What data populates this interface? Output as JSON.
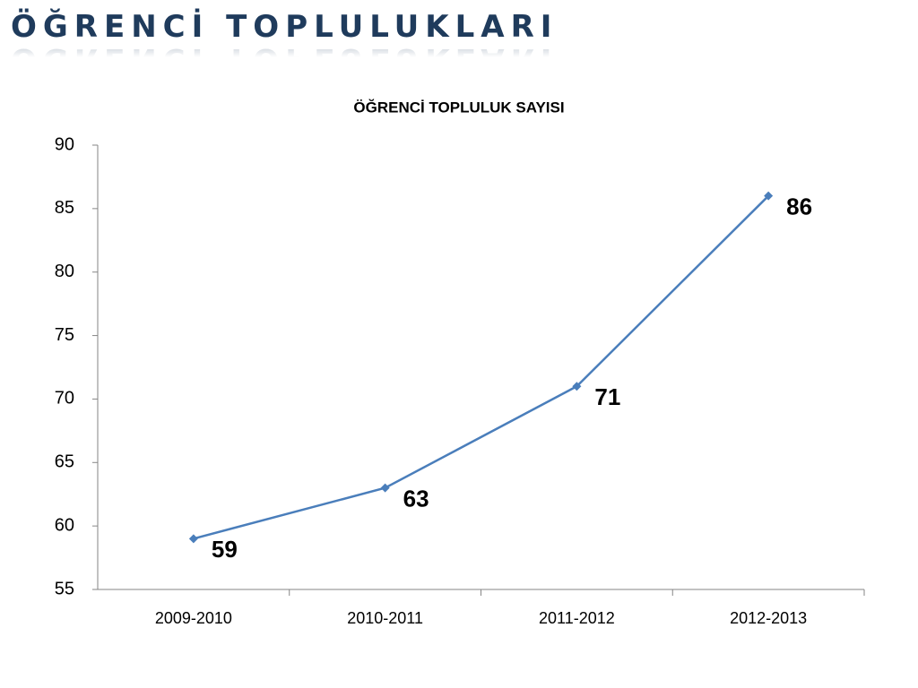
{
  "page_title": "ÖĞRENCİ TOPLULUKLARI",
  "chart_data": {
    "type": "line",
    "title": "ÖĞRENCİ TOPLULUK SAYISI",
    "categories": [
      "2009-2010",
      "2010-2011",
      "2011-2012",
      "2012-2013"
    ],
    "values": [
      59,
      63,
      71,
      86
    ],
    "color": "#4a7ebb",
    "ylim": [
      55,
      90
    ],
    "yticks": [
      55,
      60,
      65,
      70,
      75,
      80,
      85,
      90
    ],
    "grid": false
  }
}
